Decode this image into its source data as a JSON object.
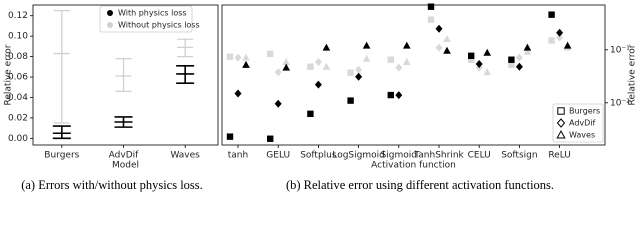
{
  "chart_data": [
    {
      "type": "errorbar",
      "xlabel": "Model",
      "ylabel": "Relative error",
      "categories": [
        "Burgers",
        "AdvDif",
        "Waves"
      ],
      "ylim": [
        -0.0065,
        0.1305
      ],
      "yticks": [
        {
          "value": 0,
          "label": "0.00"
        },
        {
          "value": 0.02,
          "label": "0.02"
        },
        {
          "value": 0.04,
          "label": "0.04"
        },
        {
          "value": 0.06,
          "label": "0.06"
        },
        {
          "value": 0.08,
          "label": "0.08"
        },
        {
          "value": 0.1,
          "label": "0.10"
        },
        {
          "value": 0.12,
          "label": "0.12"
        }
      ],
      "legend": "upper-center",
      "series": [
        {
          "name": "With physics loss",
          "color": "#000000",
          "values": [
            0.005,
            0.016,
            0.063
          ],
          "low": [
            0.0,
            0.011,
            0.054
          ],
          "high": [
            0.012,
            0.021,
            0.071
          ]
        },
        {
          "name": "Without physics loss",
          "color": "#d0d0d0",
          "values": [
            0.083,
            0.061,
            0.089
          ],
          "low": [
            0.015,
            0.046,
            0.08
          ],
          "high": [
            0.125,
            0.078,
            0.097
          ]
        }
      ]
    },
    {
      "type": "scatter",
      "xlabel": "Activation function",
      "ylabel": "Relative error",
      "log_y": true,
      "categories": [
        "tanh",
        "GELU",
        "Softplus",
        "LogSigmoid",
        "Sigmoid",
        "TanhShrink",
        "CELU",
        "Softsign",
        "ReLU"
      ],
      "ylim": [
        0.0016,
        0.7
      ],
      "yticks": [
        {
          "value": 0.01,
          "label": "10⁻²"
        },
        {
          "value": 0.1,
          "label": "10⁻¹"
        }
      ],
      "legend": "lower-right",
      "series": [
        {
          "name": "Burgers",
          "marker": "square",
          "color": "#000000",
          "values": [
            0.0023,
            0.0021,
            0.0062,
            0.011,
            0.014,
            0.65,
            0.077,
            0.065,
            0.46
          ],
          "reference_color": "#d9d9d9",
          "reference_values": [
            0.074,
            0.084,
            0.048,
            0.037,
            0.065,
            0.37,
            0.065,
            0.052,
            0.15
          ]
        },
        {
          "name": "AdvDif",
          "marker": "diamond",
          "color": "#000000",
          "values": [
            0.015,
            0.0096,
            0.022,
            0.031,
            0.014,
            0.25,
            0.054,
            0.048,
            0.21
          ],
          "reference_color": "#d9d9d9",
          "reference_values": [
            0.071,
            0.038,
            0.059,
            0.042,
            0.046,
            0.11,
            0.046,
            0.071,
            0.17
          ]
        },
        {
          "name": "Waves",
          "marker": "triangle",
          "color": "#000000",
          "values": [
            0.052,
            0.046,
            0.11,
            0.12,
            0.12,
            0.096,
            0.088,
            0.11,
            0.12
          ],
          "reference_color": "#d9d9d9",
          "reference_values": [
            0.071,
            0.059,
            0.048,
            0.068,
            0.059,
            0.16,
            0.038,
            0.092,
            0.11
          ]
        }
      ]
    }
  ],
  "captions": [
    "(a) Errors with/without physics loss.",
    "(b) Relative error using different activation functions."
  ]
}
